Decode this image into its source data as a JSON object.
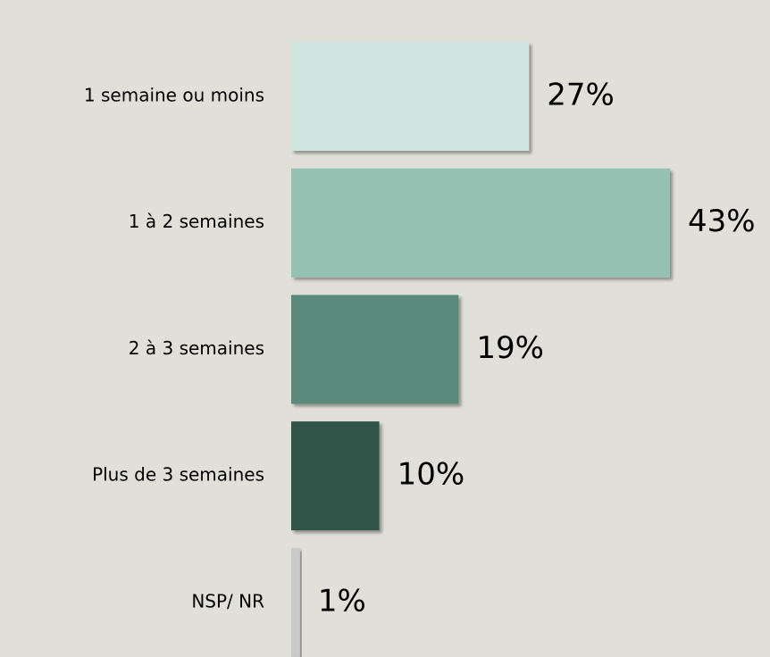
{
  "chart_data": {
    "type": "bar",
    "orientation": "horizontal",
    "categories": [
      "1 semaine ou moins",
      "1 à 2 semaines",
      "2 à 3 semaines",
      "Plus de 3 semaines",
      "NSP/ NR"
    ],
    "values": [
      27,
      43,
      19,
      10,
      1
    ],
    "value_labels": [
      "27%",
      "43%",
      "19%",
      "10%",
      "1%"
    ],
    "colors": [
      "#d1e5e0",
      "#96c2b3",
      "#5a887a",
      "#33554a",
      "#c9c9c9"
    ]
  }
}
